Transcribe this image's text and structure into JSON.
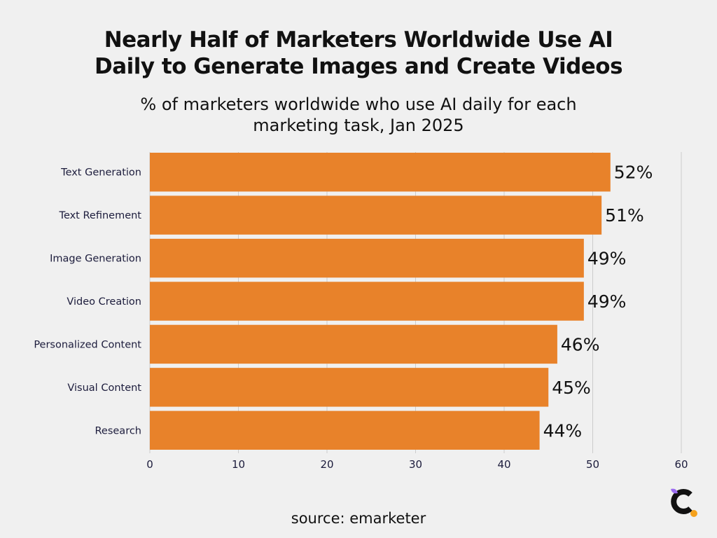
{
  "title_line1": "Nearly Half of Marketers Worldwide Use AI",
  "title_line2": "Daily to Generate Images and Create Videos",
  "subtitle_line1": "% of marketers worldwide who use AI daily for each",
  "subtitle_line2": "marketing task, Jan 2025",
  "source": "source: emarketer",
  "colors": {
    "background": "#f0f0f0",
    "bar": "#e8822a",
    "text": "#111111",
    "label": "#1c1c3c",
    "gridline": "#cccccc",
    "logo_dark": "#111111",
    "logo_orange": "#f5a11c",
    "logo_purple": "#9b6cf0"
  },
  "logo_icon": "contentstack-c-icon",
  "chart_data": {
    "type": "bar",
    "orientation": "horizontal",
    "categories": [
      "Text Generation",
      "Text Refinement",
      "Image Generation",
      "Video Creation",
      "Personalized Content",
      "Visual Content",
      "Research"
    ],
    "values": [
      52,
      51,
      49,
      49,
      46,
      45,
      44
    ],
    "value_labels": [
      "52%",
      "51%",
      "49%",
      "49%",
      "46%",
      "45%",
      "44%"
    ],
    "xlim": [
      0,
      60
    ],
    "xticks": [
      0,
      10,
      20,
      30,
      40,
      50,
      60
    ],
    "grid": true
  }
}
